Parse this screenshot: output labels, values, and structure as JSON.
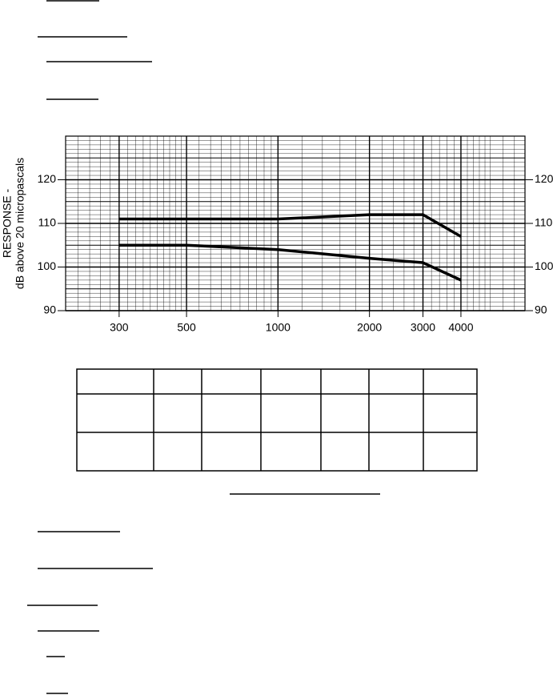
{
  "chart_data": {
    "type": "line",
    "y_label_lines": [
      "RESPONSE -",
      "dB above 20 micropascals"
    ],
    "x": [
      300,
      500,
      1000,
      2000,
      3000,
      4000
    ],
    "series": [
      {
        "color": "#000000",
        "values": [
          111,
          111,
          111,
          112,
          112,
          107
        ]
      },
      {
        "color": "#000000",
        "values": [
          105,
          105,
          104,
          102,
          101,
          97
        ]
      }
    ],
    "xscale": "log",
    "xlim": [
      200,
      6500
    ],
    "xticks": [
      300,
      500,
      1000,
      2000,
      3000,
      4000
    ],
    "ylim": [
      90,
      130
    ],
    "yticks": [
      90,
      100,
      110,
      120
    ],
    "grid": true
  }
}
